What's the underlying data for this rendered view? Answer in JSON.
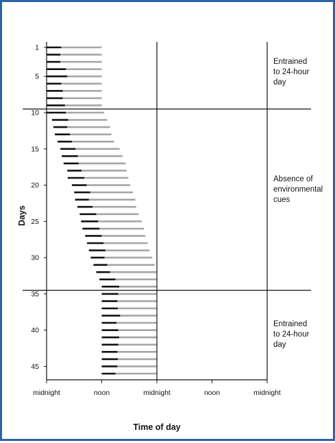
{
  "chart_data": {
    "type": "bar",
    "subtype": "actogram",
    "xlabel": "Time of day",
    "ylabel": "Days",
    "x_ticks": [
      "midnight",
      "noon",
      "midnight",
      "noon",
      "midnight"
    ],
    "x_tick_hours": [
      0,
      12,
      24,
      36,
      48
    ],
    "y_ticks": [
      "1",
      "5",
      "10",
      "15",
      "20",
      "25",
      "30",
      "35",
      "40",
      "45"
    ],
    "y_tick_days": [
      1,
      5,
      10,
      15,
      20,
      25,
      30,
      35,
      40,
      45
    ],
    "xlim_hours": [
      0,
      48
    ],
    "ylim_days": [
      1,
      46
    ],
    "phases": [
      {
        "label": "Entrained to 24-hour day",
        "days": [
          1,
          9
        ]
      },
      {
        "label": "Absence of environmental cues",
        "days": [
          10,
          34
        ]
      },
      {
        "label": "Entrained to 24-hour day",
        "days": [
          35,
          46
        ]
      }
    ],
    "phase_boundaries_days": [
      9.5,
      34.5
    ],
    "series": [
      {
        "color": "#111111",
        "role": "black segment"
      },
      {
        "color": "#a6a6a6",
        "role": "gray segment"
      }
    ],
    "bars": [
      {
        "day": 1,
        "start": 0.0,
        "dark_end": 3.2,
        "end": 12.0
      },
      {
        "day": 2,
        "start": 0.0,
        "dark_end": 3.0,
        "end": 12.0
      },
      {
        "day": 3,
        "start": 0.0,
        "dark_end": 3.0,
        "end": 12.0
      },
      {
        "day": 4,
        "start": 0.0,
        "dark_end": 4.2,
        "end": 12.0
      },
      {
        "day": 5,
        "start": 0.0,
        "dark_end": 4.5,
        "end": 12.0
      },
      {
        "day": 6,
        "start": 0.0,
        "dark_end": 3.2,
        "end": 12.0
      },
      {
        "day": 7,
        "start": 0.0,
        "dark_end": 3.5,
        "end": 12.0
      },
      {
        "day": 8,
        "start": 0.0,
        "dark_end": 3.5,
        "end": 12.0
      },
      {
        "day": 9,
        "start": 0.0,
        "dark_end": 4.0,
        "end": 12.0
      },
      {
        "day": 10,
        "start": 0.0,
        "dark_end": 4.2,
        "end": 12.5
      },
      {
        "day": 11,
        "start": 1.2,
        "dark_end": 4.7,
        "end": 13.2
      },
      {
        "day": 12,
        "start": 1.5,
        "dark_end": 4.5,
        "end": 13.8
      },
      {
        "day": 13,
        "start": 1.8,
        "dark_end": 5.1,
        "end": 14.1
      },
      {
        "day": 14,
        "start": 2.4,
        "dark_end": 5.5,
        "end": 14.7
      },
      {
        "day": 15,
        "start": 3.0,
        "dark_end": 6.3,
        "end": 15.9
      },
      {
        "day": 16,
        "start": 3.3,
        "dark_end": 6.8,
        "end": 16.5
      },
      {
        "day": 17,
        "start": 3.7,
        "dark_end": 7.0,
        "end": 17.2
      },
      {
        "day": 18,
        "start": 4.5,
        "dark_end": 7.6,
        "end": 17.4
      },
      {
        "day": 19,
        "start": 4.6,
        "dark_end": 8.2,
        "end": 17.8
      },
      {
        "day": 20,
        "start": 5.5,
        "dark_end": 8.7,
        "end": 18.2
      },
      {
        "day": 21,
        "start": 6.0,
        "dark_end": 9.5,
        "end": 18.8
      },
      {
        "day": 22,
        "start": 6.2,
        "dark_end": 9.2,
        "end": 19.3
      },
      {
        "day": 23,
        "start": 6.7,
        "dark_end": 10.0,
        "end": 19.5
      },
      {
        "day": 24,
        "start": 7.2,
        "dark_end": 10.8,
        "end": 20.0
      },
      {
        "day": 25,
        "start": 7.5,
        "dark_end": 11.2,
        "end": 20.7
      },
      {
        "day": 26,
        "start": 7.8,
        "dark_end": 11.5,
        "end": 21.2
      },
      {
        "day": 27,
        "start": 8.4,
        "dark_end": 12.0,
        "end": 21.5
      },
      {
        "day": 28,
        "start": 8.8,
        "dark_end": 12.4,
        "end": 22.0
      },
      {
        "day": 29,
        "start": 9.2,
        "dark_end": 12.8,
        "end": 22.4
      },
      {
        "day": 30,
        "start": 9.6,
        "dark_end": 12.6,
        "end": 23.0
      },
      {
        "day": 31,
        "start": 10.2,
        "dark_end": 13.2,
        "end": 23.5
      },
      {
        "day": 32,
        "start": 10.8,
        "dark_end": 13.8,
        "end": 24.0
      },
      {
        "day": 33,
        "start": 11.5,
        "dark_end": 15.0,
        "end": 24.0
      },
      {
        "day": 34,
        "start": 12.0,
        "dark_end": 15.8,
        "end": 24.0
      },
      {
        "day": 35,
        "start": 12.0,
        "dark_end": 15.6,
        "end": 24.0
      },
      {
        "day": 36,
        "start": 12.0,
        "dark_end": 15.4,
        "end": 24.0
      },
      {
        "day": 37,
        "start": 12.0,
        "dark_end": 15.5,
        "end": 24.0
      },
      {
        "day": 38,
        "start": 12.0,
        "dark_end": 16.0,
        "end": 24.0
      },
      {
        "day": 39,
        "start": 12.0,
        "dark_end": 15.2,
        "end": 24.0
      },
      {
        "day": 40,
        "start": 12.0,
        "dark_end": 15.6,
        "end": 24.0
      },
      {
        "day": 41,
        "start": 12.0,
        "dark_end": 15.8,
        "end": 24.0
      },
      {
        "day": 42,
        "start": 12.0,
        "dark_end": 15.6,
        "end": 24.0
      },
      {
        "day": 43,
        "start": 12.0,
        "dark_end": 15.4,
        "end": 24.0
      },
      {
        "day": 44,
        "start": 12.0,
        "dark_end": 15.5,
        "end": 24.0
      },
      {
        "day": 45,
        "start": 12.0,
        "dark_end": 15.4,
        "end": 24.0
      },
      {
        "day": 46,
        "start": 12.0,
        "dark_end": 15.0,
        "end": 24.0
      }
    ],
    "grid": false,
    "legend": "none"
  },
  "colors": {
    "frame": "#2a63a8",
    "dark_segment": "#111111",
    "light_segment": "#a6a6a6",
    "axis": "#111111"
  }
}
